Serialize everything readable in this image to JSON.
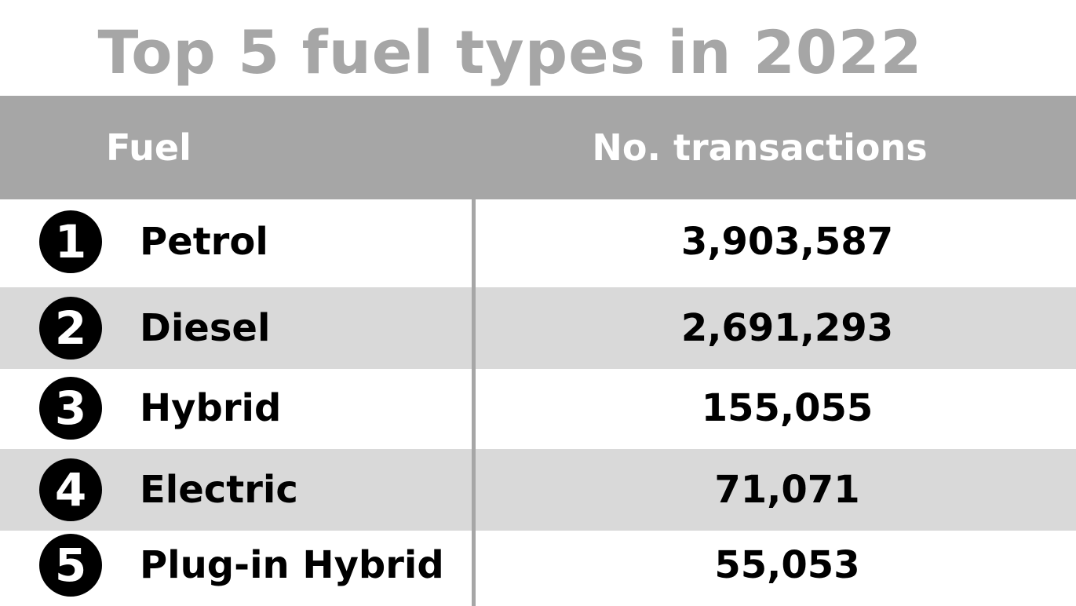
{
  "chart_data": {
    "type": "table",
    "title": "Top 5 fuel types in 2022",
    "columns": [
      "Fuel",
      "No. transactions"
    ],
    "rows": [
      {
        "rank": "1",
        "fuel": "Petrol",
        "transactions": "3,903,587"
      },
      {
        "rank": "2",
        "fuel": "Diesel",
        "transactions": "2,691,293"
      },
      {
        "rank": "3",
        "fuel": "Hybrid",
        "transactions": "155,055"
      },
      {
        "rank": "4",
        "fuel": "Electric",
        "transactions": "71,071"
      },
      {
        "rank": "5",
        "fuel": "Plug-in Hybrid",
        "transactions": "55,053"
      }
    ]
  },
  "colors": {
    "header_bg": "#a6a6a6",
    "title_text": "#a6a6a6",
    "row_shade": "#d9d9d9",
    "badge_bg": "#000000"
  }
}
